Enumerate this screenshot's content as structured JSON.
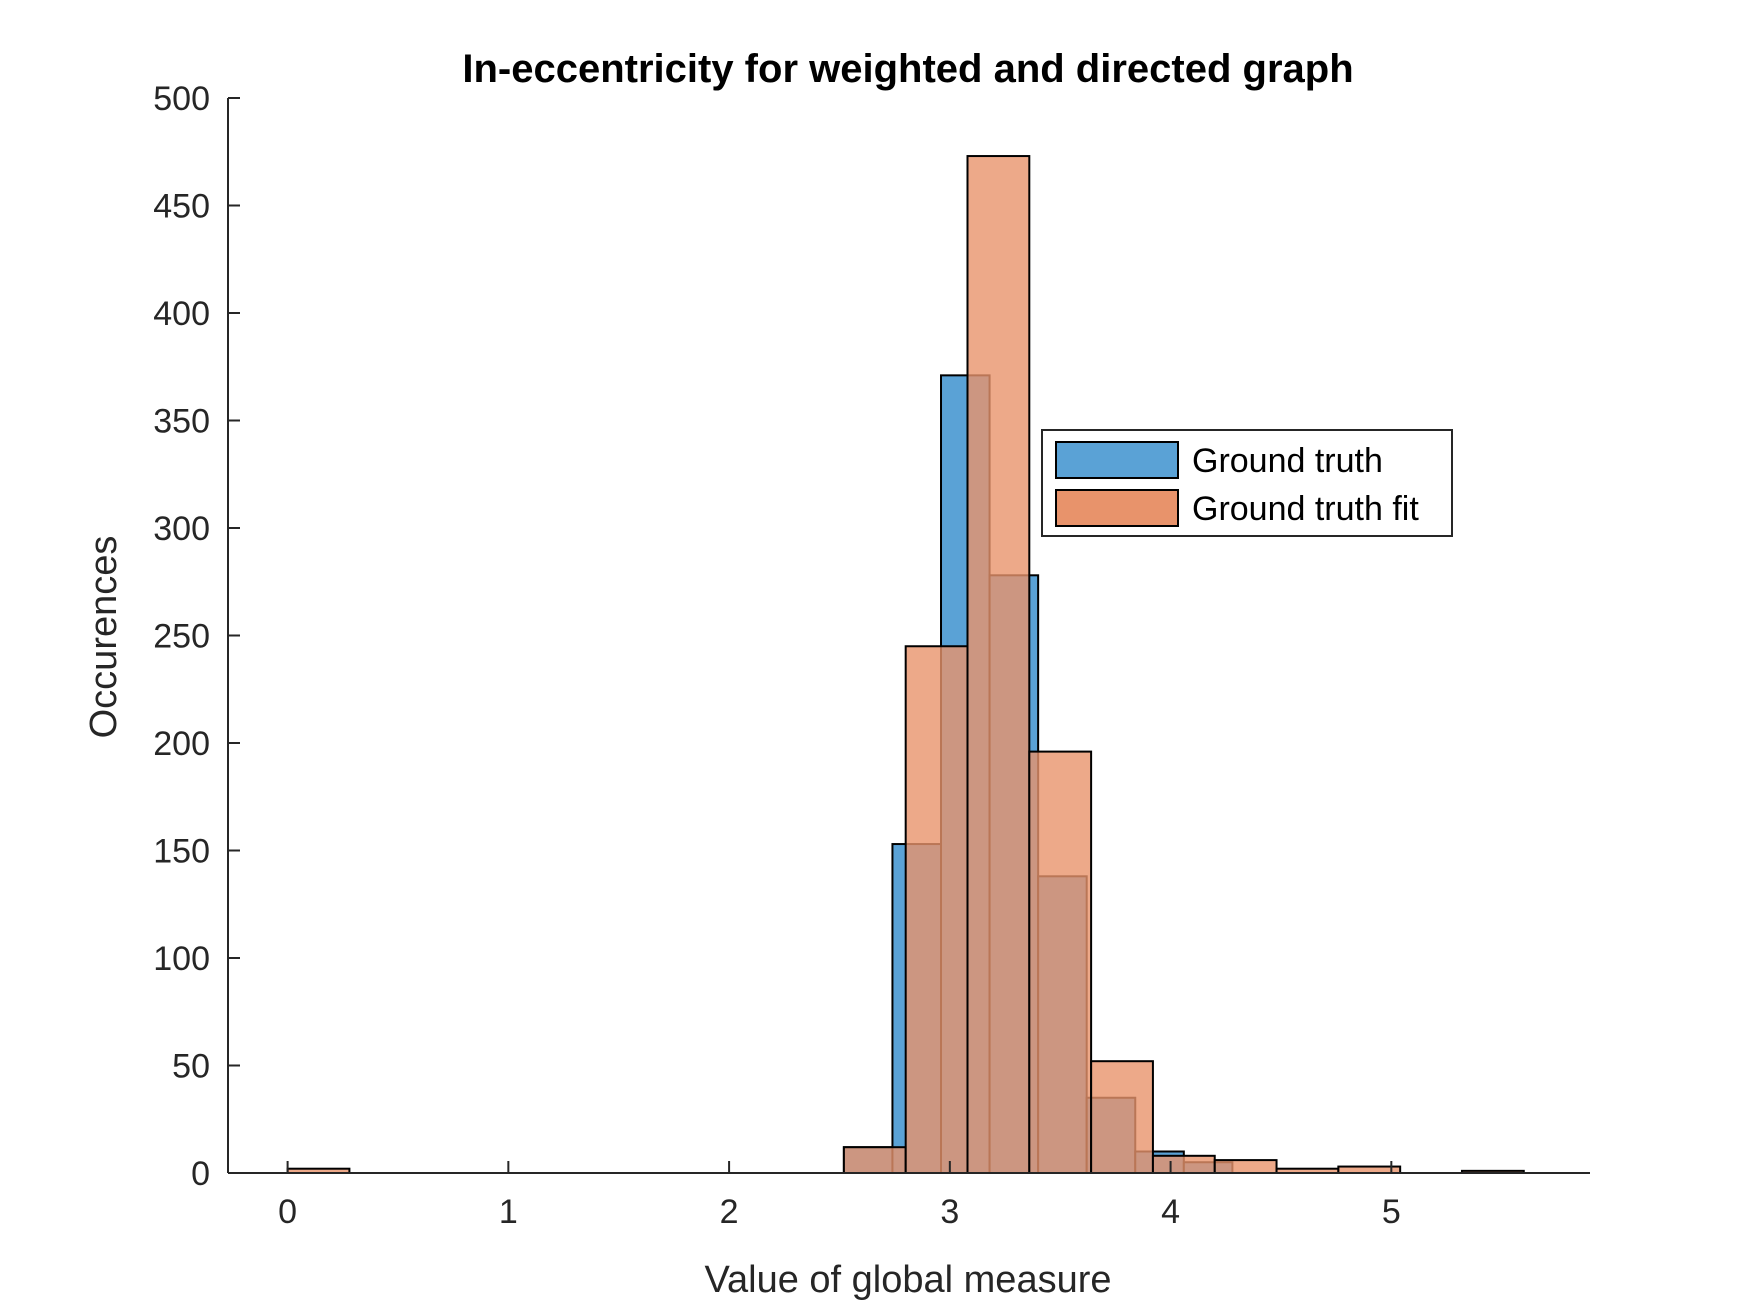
{
  "chart_data": {
    "type": "bar",
    "title": "In-eccentricity for weighted and directed graph",
    "xlabel": "Value of global measure",
    "ylabel": "Occurences",
    "xlim": [
      -0.27,
      5.9
    ],
    "ylim": [
      0,
      500
    ],
    "xticks": [
      "0",
      "1",
      "2",
      "3",
      "4",
      "5"
    ],
    "yticks": [
      "0",
      "50",
      "100",
      "150",
      "200",
      "250",
      "300",
      "350",
      "400",
      "450",
      "500"
    ],
    "legend_position": "right",
    "grid": false,
    "series": [
      {
        "name": "Ground truth",
        "color": "#5aa2d6",
        "bins": [
          {
            "start": 2.52,
            "end": 2.74,
            "count": 12
          },
          {
            "start": 2.74,
            "end": 2.96,
            "count": 153
          },
          {
            "start": 2.96,
            "end": 3.18,
            "count": 371
          },
          {
            "start": 3.18,
            "end": 3.4,
            "count": 278
          },
          {
            "start": 3.4,
            "end": 3.62,
            "count": 138
          },
          {
            "start": 3.62,
            "end": 3.84,
            "count": 35
          },
          {
            "start": 3.84,
            "end": 4.06,
            "count": 10
          },
          {
            "start": 4.06,
            "end": 4.28,
            "count": 5
          }
        ]
      },
      {
        "name": "Ground truth fit",
        "color": "#e8936b",
        "bins": [
          {
            "start": 0.0,
            "end": 0.28,
            "count": 2
          },
          {
            "start": 2.52,
            "end": 2.8,
            "count": 12
          },
          {
            "start": 2.8,
            "end": 3.08,
            "count": 245
          },
          {
            "start": 3.08,
            "end": 3.36,
            "count": 473
          },
          {
            "start": 3.36,
            "end": 3.64,
            "count": 196
          },
          {
            "start": 3.64,
            "end": 3.92,
            "count": 52
          },
          {
            "start": 3.92,
            "end": 4.2,
            "count": 8
          },
          {
            "start": 4.2,
            "end": 4.48,
            "count": 6
          },
          {
            "start": 4.48,
            "end": 4.76,
            "count": 2
          },
          {
            "start": 4.76,
            "end": 5.04,
            "count": 3
          },
          {
            "start": 5.32,
            "end": 5.6,
            "count": 1
          }
        ]
      }
    ]
  }
}
